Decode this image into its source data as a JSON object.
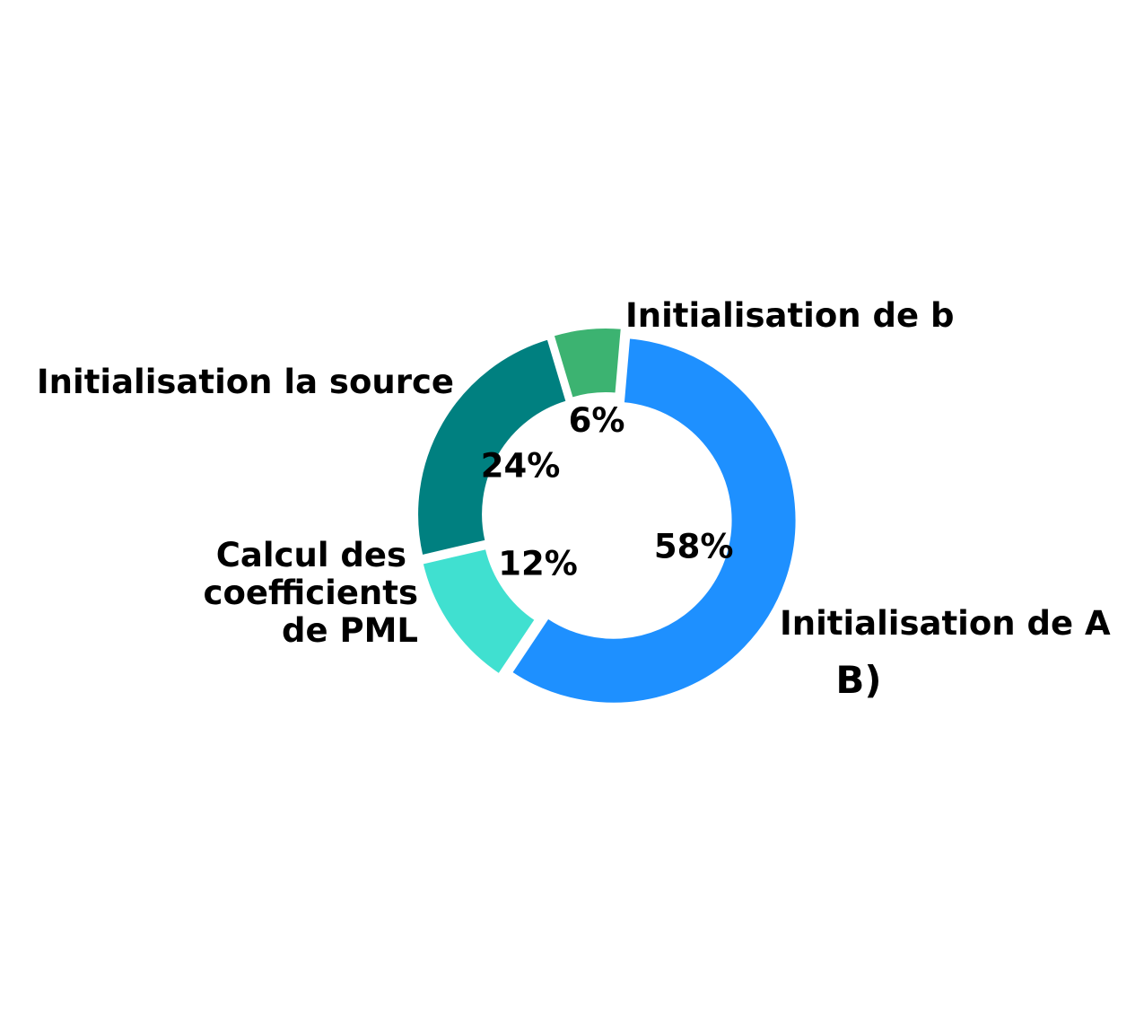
{
  "chart_data": {
    "type": "pie",
    "style": "donut",
    "panel_label": "B)",
    "start_angle_deg": 85.05,
    "direction": "counterclockwise",
    "explode": true,
    "slices": [
      {
        "name": "Initialisation de b",
        "label_lines": [
          "Initialisation de b"
        ],
        "value": 6,
        "pct_label": "6%",
        "color": "#3CB371"
      },
      {
        "name": "Initialisation la source",
        "label_lines": [
          "Initialisation la source"
        ],
        "value": 24,
        "pct_label": "24%",
        "color": "#008080"
      },
      {
        "name": "Calcul des coefficients de PML",
        "label_lines": [
          "Calcul des",
          "coefficients",
          "de PML"
        ],
        "value": 12,
        "pct_label": "12%",
        "color": "#40E0D0"
      },
      {
        "name": "Initialisation de A",
        "label_lines": [
          "Initialisation de A"
        ],
        "value": 58,
        "pct_label": "58%",
        "color": "#1E90FF"
      }
    ]
  }
}
